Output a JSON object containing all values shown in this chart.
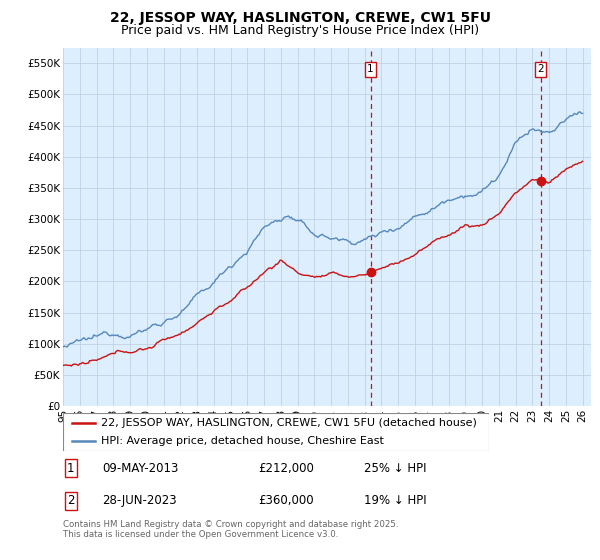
{
  "title": "22, JESSOP WAY, HASLINGTON, CREWE, CW1 5FU",
  "subtitle": "Price paid vs. HM Land Registry's House Price Index (HPI)",
  "ylim": [
    0,
    575000
  ],
  "yticks": [
    0,
    50000,
    100000,
    150000,
    200000,
    250000,
    300000,
    350000,
    400000,
    450000,
    500000,
    550000
  ],
  "ytick_labels": [
    "£0",
    "£50K",
    "£100K",
    "£150K",
    "£200K",
    "£250K",
    "£300K",
    "£350K",
    "£400K",
    "£450K",
    "£500K",
    "£550K"
  ],
  "xlim_start": 1995.0,
  "xlim_end": 2026.5,
  "hpi_color": "#5588bb",
  "price_color": "#cc1111",
  "vline_color": "#cc1111",
  "grid_color": "#bbccdd",
  "chart_bg": "#ddeeff",
  "sale1_year": 2013.35,
  "sale1_price": 212000,
  "sale2_year": 2023.49,
  "sale2_price": 360000,
  "legend_price_label": "22, JESSOP WAY, HASLINGTON, CREWE, CW1 5FU (detached house)",
  "legend_hpi_label": "HPI: Average price, detached house, Cheshire East",
  "annotation1": [
    "1",
    "09-MAY-2013",
    "£212,000",
    "25% ↓ HPI"
  ],
  "annotation2": [
    "2",
    "28-JUN-2023",
    "£360,000",
    "19% ↓ HPI"
  ],
  "footer": "Contains HM Land Registry data © Crown copyright and database right 2025.\nThis data is licensed under the Open Government Licence v3.0.",
  "title_fontsize": 10,
  "subtitle_fontsize": 9,
  "tick_fontsize": 7.5,
  "legend_fontsize": 8,
  "ann_fontsize": 8.5
}
